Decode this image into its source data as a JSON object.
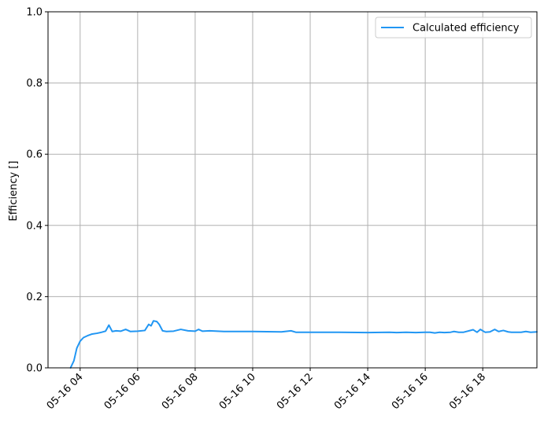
{
  "chart_data": {
    "type": "line",
    "xlabel": "",
    "ylabel": "Efficiency []",
    "xlim": [
      "05-16 02:53",
      "05-16 19:53"
    ],
    "ylim": [
      0.0,
      1.0
    ],
    "grid": true,
    "legend_position": "top-right",
    "x_tick_labels": [
      "05-16 04",
      "05-16 06",
      "05-16 08",
      "05-16 10",
      "05-16 12",
      "05-16 14",
      "05-16 16",
      "05-16 18"
    ],
    "y_tick_labels": [
      "0.0",
      "0.2",
      "0.4",
      "0.6",
      "0.8",
      "1.0"
    ],
    "series": [
      {
        "name": "Calculated efficiency",
        "color": "#2196f3",
        "points": [
          [
            "05-16 03:40",
            0.0
          ],
          [
            "05-16 03:47",
            0.02
          ],
          [
            "05-16 03:53",
            0.055
          ],
          [
            "05-16 04:00",
            0.075
          ],
          [
            "05-16 04:07",
            0.085
          ],
          [
            "05-16 04:15",
            0.09
          ],
          [
            "05-16 04:25",
            0.095
          ],
          [
            "05-16 04:35",
            0.097
          ],
          [
            "05-16 04:45",
            0.1
          ],
          [
            "05-16 04:53",
            0.103
          ],
          [
            "05-16 05:00",
            0.12
          ],
          [
            "05-16 05:07",
            0.102
          ],
          [
            "05-16 05:15",
            0.104
          ],
          [
            "05-16 05:25",
            0.103
          ],
          [
            "05-16 05:35",
            0.108
          ],
          [
            "05-16 05:45",
            0.102
          ],
          [
            "05-16 06:00",
            0.103
          ],
          [
            "05-16 06:15",
            0.105
          ],
          [
            "05-16 06:23",
            0.122
          ],
          [
            "05-16 06:28",
            0.118
          ],
          [
            "05-16 06:33",
            0.132
          ],
          [
            "05-16 06:40",
            0.13
          ],
          [
            "05-16 06:45",
            0.122
          ],
          [
            "05-16 06:52",
            0.104
          ],
          [
            "05-16 07:00",
            0.102
          ],
          [
            "05-16 07:15",
            0.103
          ],
          [
            "05-16 07:30",
            0.108
          ],
          [
            "05-16 07:45",
            0.104
          ],
          [
            "05-16 08:00",
            0.103
          ],
          [
            "05-16 08:07",
            0.108
          ],
          [
            "05-16 08:15",
            0.103
          ],
          [
            "05-16 08:30",
            0.104
          ],
          [
            "05-16 09:00",
            0.102
          ],
          [
            "05-16 10:00",
            0.102
          ],
          [
            "05-16 11:00",
            0.101
          ],
          [
            "05-16 11:20",
            0.104
          ],
          [
            "05-16 11:30",
            0.1
          ],
          [
            "05-16 12:00",
            0.1
          ],
          [
            "05-16 12:30",
            0.1
          ],
          [
            "05-16 13:00",
            0.1
          ],
          [
            "05-16 14:00",
            0.099
          ],
          [
            "05-16 14:45",
            0.1
          ],
          [
            "05-16 15:00",
            0.099
          ],
          [
            "05-16 15:20",
            0.1
          ],
          [
            "05-16 15:40",
            0.099
          ],
          [
            "05-16 16:00",
            0.1
          ],
          [
            "05-16 16:10",
            0.1
          ],
          [
            "05-16 16:20",
            0.098
          ],
          [
            "05-16 16:30",
            0.1
          ],
          [
            "05-16 16:40",
            0.099
          ],
          [
            "05-16 16:53",
            0.1
          ],
          [
            "05-16 17:00",
            0.102
          ],
          [
            "05-16 17:10",
            0.1
          ],
          [
            "05-16 17:20",
            0.1
          ],
          [
            "05-16 17:40",
            0.107
          ],
          [
            "05-16 17:48",
            0.1
          ],
          [
            "05-16 17:55",
            0.108
          ],
          [
            "05-16 18:05",
            0.1
          ],
          [
            "05-16 18:15",
            0.101
          ],
          [
            "05-16 18:25",
            0.108
          ],
          [
            "05-16 18:33",
            0.102
          ],
          [
            "05-16 18:43",
            0.105
          ],
          [
            "05-16 18:53",
            0.101
          ],
          [
            "05-16 19:00",
            0.1
          ],
          [
            "05-16 19:10",
            0.1
          ],
          [
            "05-16 19:20",
            0.1
          ],
          [
            "05-16 19:30",
            0.102
          ],
          [
            "05-16 19:40",
            0.1
          ],
          [
            "05-16 19:53",
            0.101
          ]
        ]
      }
    ]
  }
}
